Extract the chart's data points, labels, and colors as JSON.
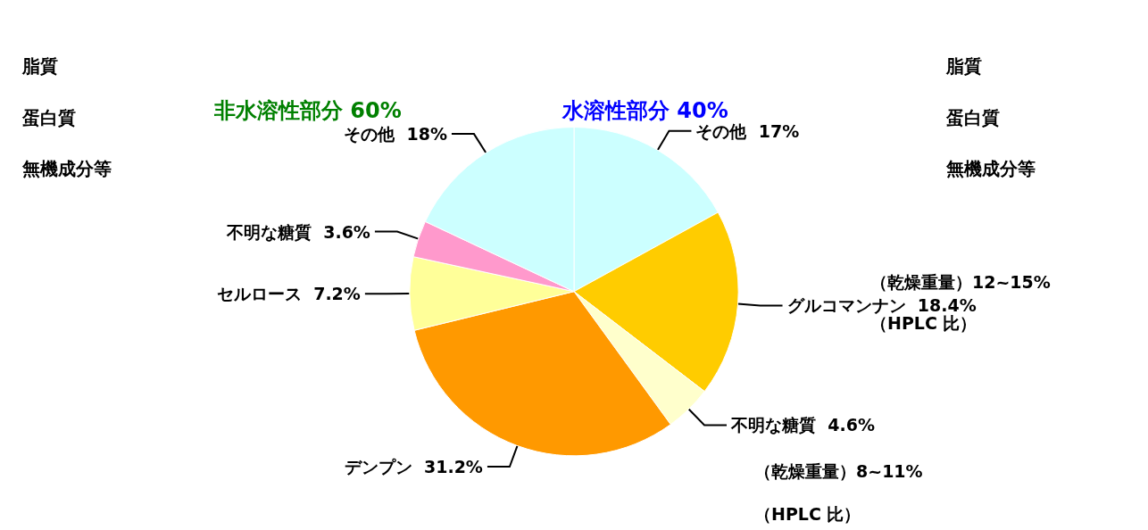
{
  "chart_data": {
    "type": "pie",
    "categories": [
      "その他",
      "グルコマンナン",
      "不明な糖質",
      "デンプン",
      "セルロース",
      "不明な糖質",
      "その他"
    ],
    "values": [
      17,
      18.4,
      4.6,
      31.2,
      7.2,
      3.6,
      18
    ],
    "colors": [
      "#ccffff",
      "#ffcc00",
      "#ffffcc",
      "#ff9900",
      "#ffff99",
      "#ff99cc",
      "#ccffff"
    ],
    "value_labels": [
      "17%",
      "18.4%",
      "4.6%",
      "31.2%",
      "7.2%",
      "3.6%",
      "18%"
    ],
    "legend": false,
    "annotations": [
      "非水溶性部分 60%",
      "水溶性部分 40%",
      "脂質",
      "蛋白質",
      "無機成分等",
      "脂質",
      "蛋白質",
      "無機成分等",
      "（乾燥重量）12~15%",
      "（HPLC 比）",
      "（乾燥重量）8~11%",
      "（HPLC 比）"
    ]
  }
}
